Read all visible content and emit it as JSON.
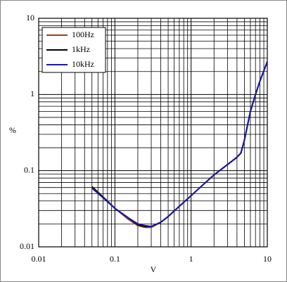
{
  "chart_data": {
    "type": "line",
    "xlabel": "V",
    "ylabel": "%",
    "xscale": "log",
    "yscale": "log",
    "grid": true,
    "legend": "upper left",
    "xlim": [
      0.01,
      10
    ],
    "ylim": [
      0.01,
      10
    ],
    "xticks": [
      0.01,
      0.1,
      1,
      10
    ],
    "yticks": [
      0.01,
      0.1,
      1,
      10
    ],
    "x": [
      0.05,
      0.07,
      0.1,
      0.15,
      0.2,
      0.25,
      0.3,
      0.4,
      0.5,
      0.7,
      1,
      1.5,
      2,
      3,
      4,
      4.5,
      5,
      6,
      7,
      8,
      10
    ],
    "series": [
      {
        "name": "100Hz",
        "color": "#a0401a",
        "values": [
          0.062,
          0.045,
          0.032,
          0.023,
          0.019,
          0.018,
          0.018,
          0.021,
          0.025,
          0.034,
          0.047,
          0.068,
          0.088,
          0.12,
          0.15,
          0.17,
          0.25,
          0.6,
          1.0,
          1.5,
          2.7
        ]
      },
      {
        "name": "1kHz",
        "color": "#000000",
        "values": [
          0.061,
          0.045,
          0.032,
          0.024,
          0.0195,
          0.0185,
          0.0185,
          0.021,
          0.025,
          0.034,
          0.047,
          0.068,
          0.088,
          0.12,
          0.15,
          0.17,
          0.25,
          0.6,
          1.0,
          1.5,
          2.7
        ]
      },
      {
        "name": "10kHz",
        "color": "#1a1aa6",
        "values": [
          0.059,
          0.044,
          0.032,
          0.024,
          0.02,
          0.019,
          0.0185,
          0.021,
          0.025,
          0.034,
          0.047,
          0.068,
          0.088,
          0.12,
          0.15,
          0.17,
          0.25,
          0.6,
          1.0,
          1.5,
          2.7
        ]
      }
    ]
  }
}
